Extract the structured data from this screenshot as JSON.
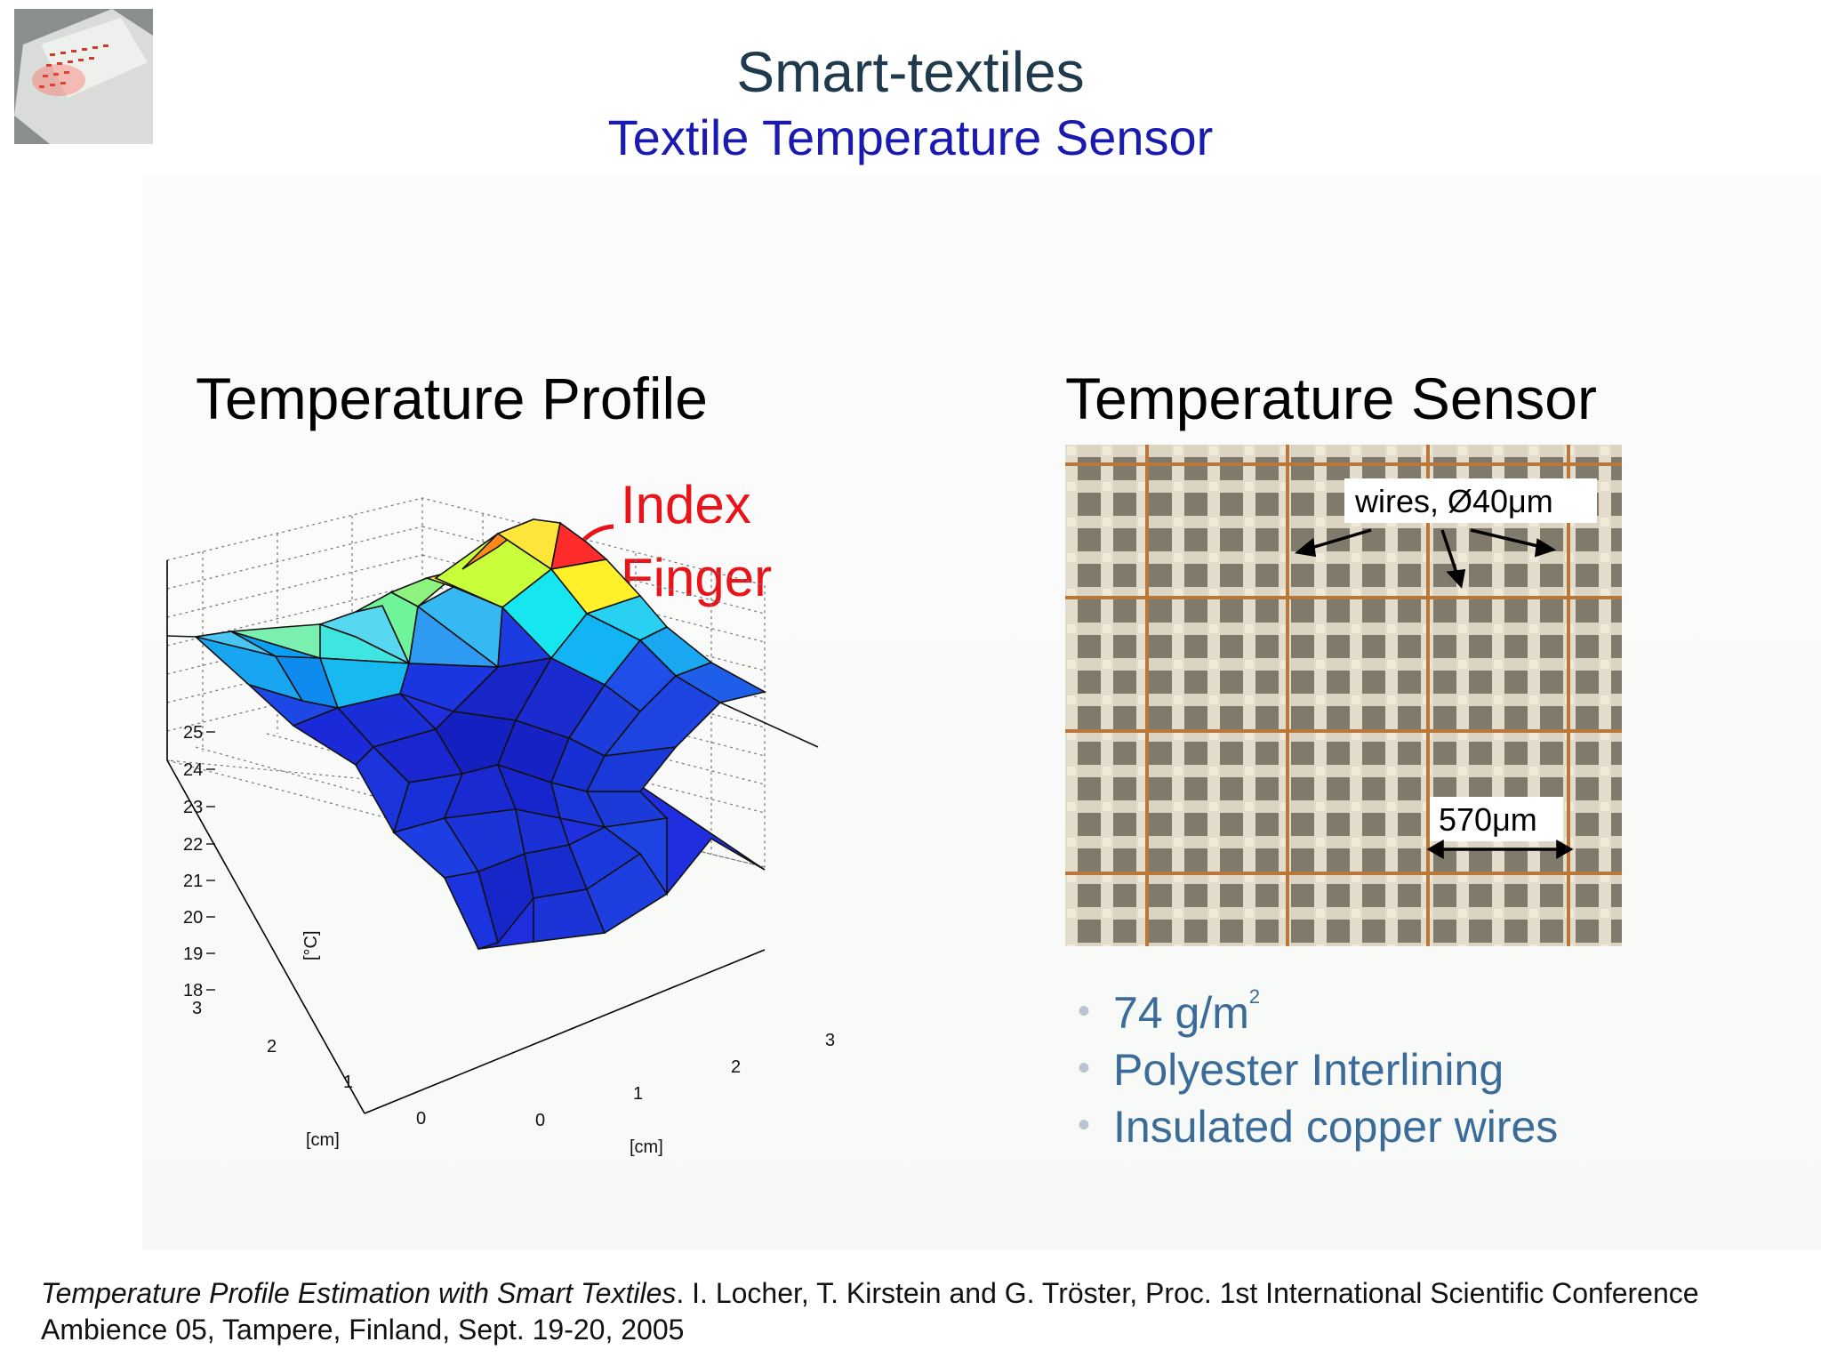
{
  "header": {
    "title": "Smart-textiles",
    "subtitle": "Textile Temperature Sensor"
  },
  "left": {
    "heading": "Temperature Profile",
    "annotation_line1": "Index",
    "annotation_line2": "Finger",
    "annotation_color": "#e8141a",
    "axis_labels": {
      "z": "[°C]",
      "x": "[cm]",
      "y": "[cm]"
    },
    "z_ticks": [
      "25",
      "24",
      "23",
      "22",
      "21",
      "20",
      "19",
      "18"
    ],
    "x_ticks": [
      "3",
      "2",
      "1",
      "0"
    ],
    "y_ticks": [
      "0",
      "1",
      "2",
      "3"
    ]
  },
  "right": {
    "heading": "Temperature Sensor",
    "callout_wires": "wires, Ø40μm",
    "callout_spacing": "570μm",
    "bullets": [
      {
        "text": "74 g/m",
        "sup": "2"
      },
      {
        "text": "Polyester Interlining",
        "sup": ""
      },
      {
        "text": "Insulated copper wires",
        "sup": ""
      }
    ],
    "bullet_color": "#3a6b99"
  },
  "citation": {
    "title": "Temperature Profile Estimation with Smart Textiles",
    "rest": ". I. Locher, T. Kirstein and G. Tröster, Proc. 1st International Scientific Conference Ambience 05, Tampere, Finland, Sept. 19-20, 2005"
  }
}
